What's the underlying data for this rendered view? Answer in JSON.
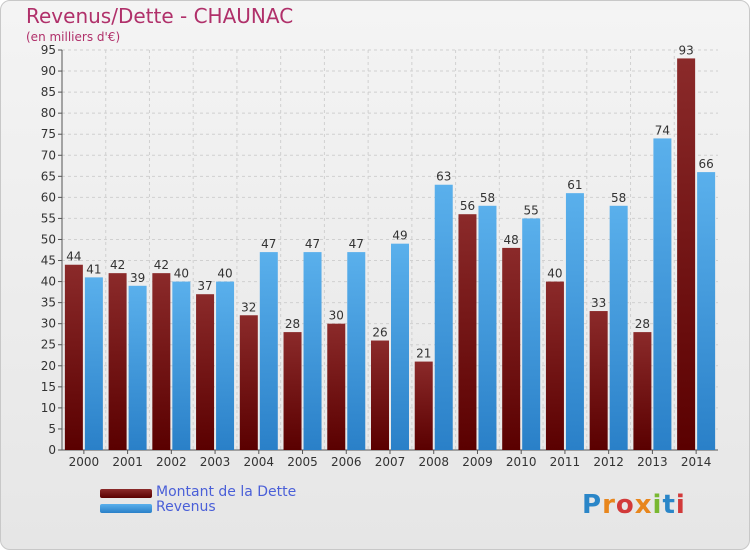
{
  "colors": {
    "dette_top": "#8b2a2a",
    "dette_bottom": "#5a0000",
    "revenus_top": "#5ab0ec",
    "revenus_bottom": "#2a80c8",
    "title": "#b0306a",
    "legend_text": "#4a5fd8"
  },
  "logo": {
    "text": "Proxiti"
  },
  "chart_data": {
    "type": "bar",
    "title": "Revenus/Dette - CHAUNAC",
    "subtitle": "(en milliers d'€)",
    "categories": [
      "2000",
      "2001",
      "2002",
      "2003",
      "2004",
      "2005",
      "2006",
      "2007",
      "2008",
      "2009",
      "2010",
      "2011",
      "2012",
      "2013",
      "2014"
    ],
    "series": [
      {
        "name": "Montant de la Dette",
        "values": [
          44,
          42,
          42,
          37,
          32,
          28,
          30,
          26,
          21,
          56,
          48,
          40,
          33,
          28,
          93
        ]
      },
      {
        "name": "Revenus",
        "values": [
          41,
          39,
          40,
          40,
          47,
          47,
          47,
          49,
          63,
          58,
          55,
          61,
          58,
          74,
          66
        ]
      }
    ],
    "ylim": [
      0,
      95
    ],
    "yticks": [
      0,
      5,
      10,
      15,
      20,
      25,
      30,
      35,
      40,
      45,
      50,
      55,
      60,
      65,
      70,
      75,
      80,
      85,
      90,
      95
    ],
    "grid": true,
    "legend_position": "bottom-left"
  }
}
